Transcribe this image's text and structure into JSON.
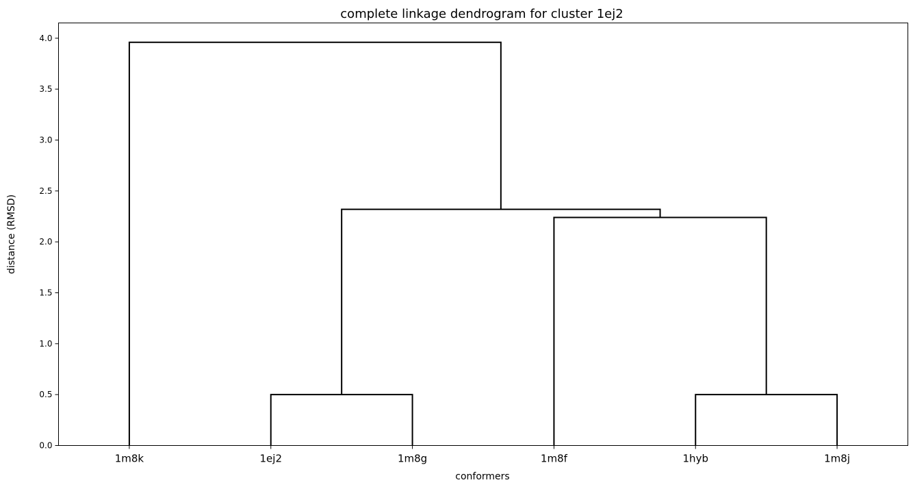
{
  "chart_data": {
    "type": "dendrogram",
    "title": "complete linkage dendrogram for cluster 1ej2",
    "xlabel": "conformers",
    "ylabel": "distance (RMSD)",
    "leaves": [
      "1m8k",
      "1ej2",
      "1m8g",
      "1m8f",
      "1hyb",
      "1m8j"
    ],
    "ylim": [
      0,
      4.15
    ],
    "yticks": [
      "0.0",
      "0.5",
      "1.0",
      "1.5",
      "2.0",
      "2.5",
      "3.0",
      "3.5",
      "4.0"
    ],
    "merges": [
      {
        "left": "1ej2",
        "right": "1m8g",
        "distance": 0.5
      },
      {
        "left": "1hyb",
        "right": "1m8j",
        "distance": 0.5
      },
      {
        "left": "1m8f",
        "right": "(1hyb, 1m8j)",
        "distance": 2.24
      },
      {
        "left": "(1ej2, 1m8g)",
        "right": "(1m8f, (1hyb, 1m8j))",
        "distance": 2.32
      },
      {
        "left": "1m8k",
        "right": "(1ej2, 1m8g, 1m8f, 1hyb, 1m8j)",
        "distance": 3.96
      }
    ],
    "links": [
      {
        "left": 1,
        "right": 2,
        "height": 0.5,
        "left_height": 0,
        "right_height": 0
      },
      {
        "left": 4,
        "right": 5,
        "height": 0.5,
        "left_height": 0,
        "right_height": 0
      },
      {
        "left": 3,
        "right": 4.5,
        "height": 2.24,
        "left_height": 0,
        "right_height": 0.5
      },
      {
        "left": 1.5,
        "right": 3.75,
        "height": 2.32,
        "left_height": 0.5,
        "right_height": 2.24
      },
      {
        "left": 0,
        "right": 2.625,
        "height": 3.96,
        "left_height": 0,
        "right_height": 2.32
      }
    ],
    "link_color": "#000000",
    "grid": false
  }
}
